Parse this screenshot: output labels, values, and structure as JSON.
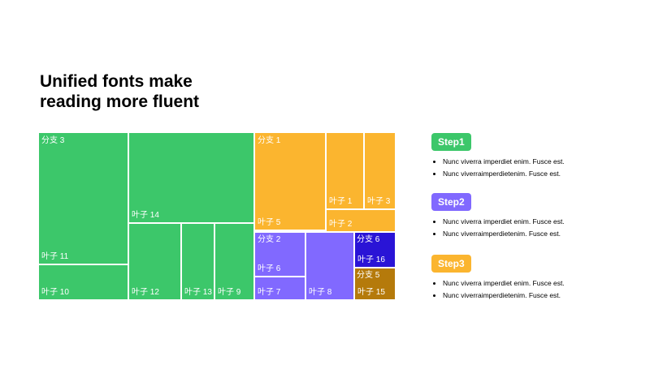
{
  "title": "Unified fonts make\nreading more fluent",
  "colors": {
    "green": "#3CC76A",
    "orange": "#FBB52F",
    "purple": "#8169FF",
    "blue": "#2A14D6",
    "brown": "#B57A0B"
  },
  "chart_data": {
    "type": "treemap",
    "branches": [
      {
        "name": "分支 3",
        "color": "green"
      },
      {
        "name": "分支 1",
        "color": "orange"
      },
      {
        "name": "分支 2",
        "color": "purple"
      },
      {
        "name": "分支 6",
        "color": "blue"
      },
      {
        "name": "分支 5",
        "color": "brown"
      }
    ],
    "leaves": [
      {
        "name": "叶子 11",
        "branch": "分支 3",
        "color": "green"
      },
      {
        "name": "叶子 10",
        "branch": "分支 3",
        "color": "green"
      },
      {
        "name": "叶子 14",
        "branch": "分支 3",
        "color": "green"
      },
      {
        "name": "叶子 12",
        "branch": "分支 3",
        "color": "green"
      },
      {
        "name": "叶子 13",
        "branch": "分支 3",
        "color": "green"
      },
      {
        "name": "叶子 9",
        "branch": "分支 3",
        "color": "green"
      },
      {
        "name": "叶子 5",
        "branch": "分支 1",
        "color": "orange"
      },
      {
        "name": "叶子 1",
        "branch": "分支 1",
        "color": "orange"
      },
      {
        "name": "叶子 3",
        "branch": "分支 1",
        "color": "orange"
      },
      {
        "name": "叶子 2",
        "branch": "分支 1",
        "color": "orange"
      },
      {
        "name": "叶子 6",
        "branch": "分支 2",
        "color": "purple"
      },
      {
        "name": "叶子 7",
        "branch": "分支 2",
        "color": "purple"
      },
      {
        "name": "叶子 8",
        "branch": "分支 2",
        "color": "purple"
      },
      {
        "name": "叶子 16",
        "branch": "分支 6",
        "color": "blue"
      },
      {
        "name": "叶子 15",
        "branch": "分支 5",
        "color": "brown"
      }
    ]
  },
  "steps": [
    {
      "label": "Step1",
      "color": "#3CC76A",
      "bullets": [
        "Nunc  viverra  imperdiet  enim.  Fusce  est.",
        "Nunc  viverraimperdietenim.  Fusce  est."
      ]
    },
    {
      "label": "Step2",
      "color": "#8169FF",
      "bullets": [
        "Nunc  viverra  imperdiet  enim.  Fusce  est.",
        "Nunc  viverraimperdietenim.  Fusce  est."
      ]
    },
    {
      "label": "Step3",
      "color": "#FBB52F",
      "bullets": [
        "Nunc  viverra  imperdiet  enim.  Fusce  est.",
        "Nunc  viverraimperdietenim.  Fusce  est."
      ]
    }
  ]
}
